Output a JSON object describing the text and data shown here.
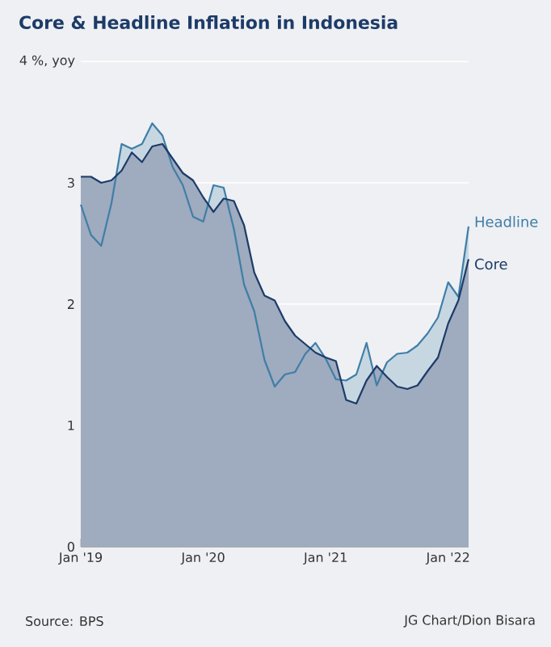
{
  "chart_data": {
    "type": "area",
    "title": "Core & Headline Inflation in Indonesia",
    "x": [
      "2019-01",
      "2019-02",
      "2019-03",
      "2019-04",
      "2019-05",
      "2019-06",
      "2019-07",
      "2019-08",
      "2019-09",
      "2019-10",
      "2019-11",
      "2019-12",
      "2020-01",
      "2020-02",
      "2020-03",
      "2020-04",
      "2020-05",
      "2020-06",
      "2020-07",
      "2020-08",
      "2020-09",
      "2020-10",
      "2020-11",
      "2020-12",
      "2021-01",
      "2021-02",
      "2021-03",
      "2021-04",
      "2021-05",
      "2021-06",
      "2021-07",
      "2021-08",
      "2021-09",
      "2021-10",
      "2021-11",
      "2021-12",
      "2022-01",
      "2022-02",
      "2022-03"
    ],
    "series": [
      {
        "name": "Headline",
        "color": "#3f7ea8",
        "values": [
          2.82,
          2.57,
          2.48,
          2.83,
          3.32,
          3.28,
          3.32,
          3.49,
          3.39,
          3.13,
          2.98,
          2.72,
          2.68,
          2.98,
          2.96,
          2.62,
          2.16,
          1.94,
          1.54,
          1.32,
          1.42,
          1.44,
          1.59,
          1.68,
          1.55,
          1.38,
          1.37,
          1.42,
          1.68,
          1.33,
          1.52,
          1.59,
          1.6,
          1.66,
          1.76,
          1.89,
          2.18,
          2.06,
          2.64
        ]
      },
      {
        "name": "Core",
        "color": "#1d3b68",
        "values": [
          3.05,
          3.05,
          3.0,
          3.02,
          3.1,
          3.25,
          3.17,
          3.3,
          3.32,
          3.2,
          3.08,
          3.02,
          2.88,
          2.76,
          2.87,
          2.85,
          2.65,
          2.26,
          2.07,
          2.03,
          1.86,
          1.74,
          1.67,
          1.6,
          1.56,
          1.53,
          1.21,
          1.18,
          1.37,
          1.49,
          1.4,
          1.32,
          1.3,
          1.33,
          1.45,
          1.56,
          1.84,
          2.03,
          2.37
        ]
      }
    ],
    "xlim": [
      "2019-01",
      "2022-03"
    ],
    "xticks": [
      {
        "value": "2019-01",
        "label": "Jan '19"
      },
      {
        "value": "2020-01",
        "label": "Jan '20"
      },
      {
        "value": "2021-01",
        "label": "Jan '21"
      },
      {
        "value": "2022-01",
        "label": "Jan '22"
      }
    ],
    "ylim": [
      0,
      4
    ],
    "yticks": [
      0,
      1,
      2,
      3,
      {
        "value": 4,
        "label": "4 %, yoy"
      }
    ],
    "grid": "y",
    "legend": "right",
    "annotations": [
      "Source: BPS",
      "JG Chart/Dion Bisara"
    ]
  }
}
